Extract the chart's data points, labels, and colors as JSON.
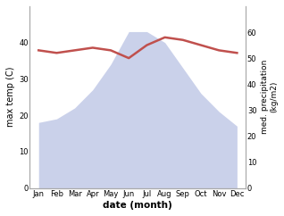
{
  "months": [
    "Jan",
    "Feb",
    "Mar",
    "Apr",
    "May",
    "Jun",
    "Jul",
    "Aug",
    "Sep",
    "Oct",
    "Nov",
    "Dec"
  ],
  "precipitation": [
    18,
    19,
    22,
    27,
    34,
    43,
    43,
    40,
    33,
    26,
    21,
    17
  ],
  "max_temp": [
    53,
    52,
    53,
    54,
    53,
    50,
    55,
    58,
    57,
    55,
    53,
    52
  ],
  "temp_color": "#c0504d",
  "precip_fill_color": "#c5cce8",
  "ylabel_left": "max temp (C)",
  "ylabel_right": "med. precipitation\n(kg/m2)",
  "xlabel": "date (month)",
  "ylim_left": [
    0,
    50
  ],
  "ylim_right": [
    0,
    70
  ],
  "yticks_left": [
    0,
    10,
    20,
    30,
    40
  ],
  "yticks_right": [
    0,
    10,
    20,
    30,
    40,
    50,
    60
  ],
  "bg_color": "#ffffff",
  "spine_color": "#aaaaaa",
  "temp_scale_min": 0,
  "temp_scale_max": 70,
  "precip_scale_min": 0,
  "precip_scale_max": 50
}
